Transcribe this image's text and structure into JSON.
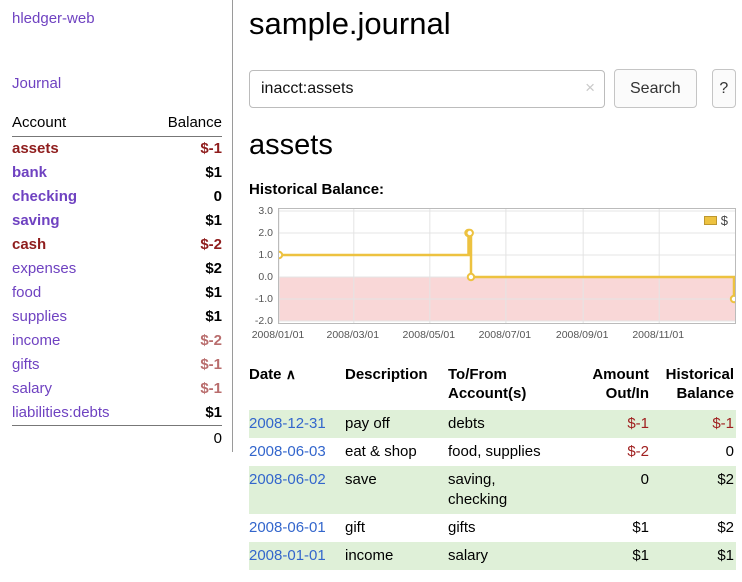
{
  "colors": {
    "link_purple": "#6f42c1",
    "date_link_blue": "#3366cc",
    "negative_strong": "#8f1d1d",
    "negative_soft": "#b96d6d",
    "negative_table": "#a02020",
    "row_green": "#dff0d8",
    "chart_line_yellow": "#edc240",
    "chart_negative_region": "#f9d7d7"
  },
  "sidebar": {
    "app_title": "hledger-web",
    "journal_link": "Journal",
    "accounts_table": {
      "headers": {
        "account": "Account",
        "balance": "Balance"
      },
      "rows": [
        {
          "name": "assets",
          "balance": "$-1"
        },
        {
          "name": "bank",
          "balance": "$1"
        },
        {
          "name": "checking",
          "balance": "0"
        },
        {
          "name": "saving",
          "balance": "$1"
        },
        {
          "name": "cash",
          "balance": "$-2"
        },
        {
          "name": "expenses",
          "balance": "$2"
        },
        {
          "name": "food",
          "balance": "$1"
        },
        {
          "name": "supplies",
          "balance": "$1"
        },
        {
          "name": "income",
          "balance": "$-2"
        },
        {
          "name": "gifts",
          "balance": "$-1"
        },
        {
          "name": "salary",
          "balance": "$-1"
        },
        {
          "name": "liabilities:debts",
          "balance": "$1"
        }
      ],
      "total": "0"
    }
  },
  "main": {
    "title": "sample.journal",
    "search": {
      "value": "inacct:assets",
      "clear_icon": "×",
      "button_label": "Search",
      "help_label": "?"
    },
    "account_heading": "assets",
    "chart_label": "Historical Balance:",
    "register_table": {
      "sort_icon": "∧",
      "headers": {
        "date": "Date",
        "description": "Description",
        "account": "To/From\nAccount(s)",
        "amount": "Amount\nOut/In",
        "balance": "Historical\nBalance"
      },
      "rows": [
        {
          "date": "2008-12-31",
          "description": "pay off",
          "accounts": "debts",
          "amount": "$-1",
          "balance": "$-1"
        },
        {
          "date": "2008-06-03",
          "description": "eat & shop",
          "accounts": "food, supplies",
          "amount": "$-2",
          "balance": "0"
        },
        {
          "date": "2008-06-02",
          "description": "save",
          "accounts": "saving,\nchecking",
          "amount": "0",
          "balance": "$2"
        },
        {
          "date": "2008-06-01",
          "description": "gift",
          "accounts": "gifts",
          "amount": "$1",
          "balance": "$2"
        },
        {
          "date": "2008-01-01",
          "description": "income",
          "accounts": "salary",
          "amount": "$1",
          "balance": "$1"
        }
      ]
    }
  },
  "chart_data": {
    "type": "line",
    "step": true,
    "title": "Historical Balance",
    "xlabel": "",
    "ylabel": "",
    "series": [
      {
        "name": "$",
        "color": "#edc240",
        "points": [
          {
            "date": "2008-01-01",
            "balance": 1
          },
          {
            "date": "2008-06-01",
            "balance": 2
          },
          {
            "date": "2008-06-02",
            "balance": 2
          },
          {
            "date": "2008-06-03",
            "balance": 0
          },
          {
            "date": "2008-12-31",
            "balance": -1
          }
        ]
      }
    ],
    "ylim": [
      -2.0,
      3.0
    ],
    "y_ticks": [
      "3.0",
      "2.0",
      "1.0",
      "0.0",
      "-1.0",
      "-2.0"
    ],
    "x_ticks": [
      "2008/01/01",
      "2008/03/01",
      "2008/05/01",
      "2008/07/01",
      "2008/09/01",
      "2008/11/01"
    ],
    "x_range": [
      "2008-01-01",
      "2008-12-31"
    ],
    "grid": true,
    "legend_position": "top-right",
    "negative_region_color": "#f9d7d7"
  }
}
